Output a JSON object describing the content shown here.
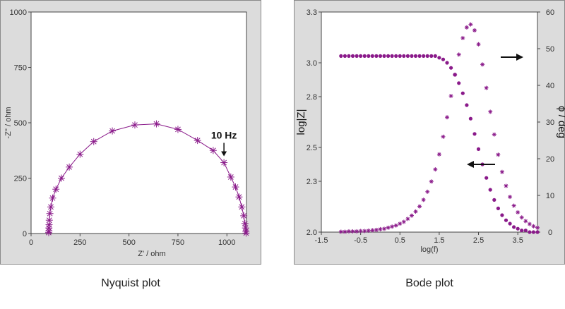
{
  "captions": {
    "nyquist": "Nyquist plot",
    "bode": "Bode plot"
  },
  "colors": {
    "series": "#8a1a8a",
    "background": "#dcdcdc",
    "plot_area": "#ffffff",
    "axis": "#444444"
  },
  "chart_data": [
    {
      "type": "scatter",
      "title": "",
      "xlabel": "Z' / ohm",
      "ylabel": "-Z'' / ohm",
      "xlim": [
        0,
        1100
      ],
      "ylim": [
        0,
        1000
      ],
      "xticks": [
        "0",
        "250",
        "500",
        "750",
        "1000"
      ],
      "yticks": [
        "0",
        "250",
        "500",
        "750",
        "1000"
      ],
      "grid": false,
      "marker": "asterisk",
      "annotation": {
        "text": "10 Hz",
        "x": 985,
        "y": 320
      },
      "series": [
        {
          "points": [
            [
              1098,
              2
            ],
            [
              1097,
              10
            ],
            [
              1095,
              25
            ],
            [
              1092,
              45
            ],
            [
              1086,
              80
            ],
            [
              1076,
              120
            ],
            [
              1062,
              165
            ],
            [
              1044,
              210
            ],
            [
              1020,
              255
            ],
            [
              985,
              320
            ],
            [
              930,
              375
            ],
            [
              850,
              420
            ],
            [
              750,
              470
            ],
            [
              640,
              495
            ],
            [
              530,
              490
            ],
            [
              415,
              463
            ],
            [
              320,
              415
            ],
            [
              250,
              358
            ],
            [
              195,
              300
            ],
            [
              155,
              250
            ],
            [
              127,
              200
            ],
            [
              110,
              160
            ],
            [
              101,
              120
            ],
            [
              96,
              90
            ],
            [
              93,
              60
            ],
            [
              92,
              40
            ],
            [
              91,
              25
            ],
            [
              91,
              12
            ],
            [
              90,
              4
            ]
          ]
        }
      ]
    },
    {
      "type": "scatter",
      "title": "",
      "xlabel": "log(f)",
      "ylabel": "log|Z|",
      "y2label": "ϕ / deg",
      "xlim": [
        -1.5,
        4.0
      ],
      "ylim": [
        2.0,
        3.3
      ],
      "y2lim": [
        0,
        60
      ],
      "xticks": [
        "-1.5",
        "-0.5",
        "0.5",
        "1.5",
        "2.5",
        "3.5"
      ],
      "yticks": [
        "2.0",
        "2.3",
        "2.5",
        "2.8",
        "3.0",
        "3.3"
      ],
      "y2ticks": [
        "0",
        "10",
        "20",
        "30",
        "40",
        "50",
        "60"
      ],
      "grid": false,
      "annotations": [
        "arrow-left (log|Z| axis)",
        "arrow-right (ϕ axis)"
      ],
      "series": [
        {
          "axis": "left",
          "marker": "dot",
          "x": [
            -1.0,
            -0.9,
            -0.8,
            -0.7,
            -0.6,
            -0.5,
            -0.4,
            -0.3,
            -0.2,
            -0.1,
            0.0,
            0.1,
            0.2,
            0.3,
            0.4,
            0.5,
            0.6,
            0.7,
            0.8,
            0.9,
            1.0,
            1.1,
            1.2,
            1.3,
            1.4,
            1.5,
            1.6,
            1.7,
            1.8,
            1.9,
            2.0,
            2.1,
            2.2,
            2.3,
            2.4,
            2.5,
            2.6,
            2.7,
            2.8,
            2.9,
            3.0,
            3.1,
            3.2,
            3.3,
            3.4,
            3.5,
            3.6,
            3.7,
            3.8,
            3.9,
            4.0
          ],
          "y": [
            3.04,
            3.04,
            3.04,
            3.04,
            3.04,
            3.04,
            3.04,
            3.04,
            3.04,
            3.04,
            3.04,
            3.04,
            3.04,
            3.04,
            3.04,
            3.04,
            3.04,
            3.04,
            3.04,
            3.04,
            3.04,
            3.04,
            3.04,
            3.04,
            3.04,
            3.03,
            3.02,
            3.0,
            2.97,
            2.93,
            2.88,
            2.82,
            2.75,
            2.67,
            2.58,
            2.49,
            2.4,
            2.32,
            2.25,
            2.19,
            2.14,
            2.1,
            2.07,
            2.05,
            2.03,
            2.02,
            2.01,
            2.01,
            2.0,
            2.0,
            2.0
          ]
        },
        {
          "axis": "right",
          "marker": "asterisk",
          "x": [
            -1.0,
            -0.9,
            -0.8,
            -0.7,
            -0.6,
            -0.5,
            -0.4,
            -0.3,
            -0.2,
            -0.1,
            0.0,
            0.1,
            0.2,
            0.3,
            0.4,
            0.5,
            0.6,
            0.7,
            0.8,
            0.9,
            1.0,
            1.1,
            1.2,
            1.3,
            1.4,
            1.5,
            1.6,
            1.7,
            1.8,
            1.9,
            2.0,
            2.1,
            2.2,
            2.3,
            2.4,
            2.5,
            2.6,
            2.7,
            2.8,
            2.9,
            3.0,
            3.1,
            3.2,
            3.3,
            3.4,
            3.5,
            3.6,
            3.7,
            3.8,
            3.9,
            4.0
          ],
          "y": [
            0.1,
            0.1,
            0.2,
            0.2,
            0.2,
            0.3,
            0.3,
            0.4,
            0.5,
            0.6,
            0.8,
            0.9,
            1.2,
            1.5,
            1.8,
            2.3,
            2.8,
            3.6,
            4.5,
            5.6,
            7.0,
            8.8,
            11.0,
            13.8,
            17.1,
            21.2,
            26.0,
            31.3,
            37.1,
            42.9,
            48.4,
            52.9,
            55.8,
            56.6,
            55.0,
            51.2,
            45.7,
            39.3,
            32.8,
            26.6,
            21.1,
            16.4,
            12.6,
            9.6,
            7.2,
            5.4,
            4.0,
            3.0,
            2.2,
            1.6,
            1.2
          ]
        }
      ]
    }
  ]
}
